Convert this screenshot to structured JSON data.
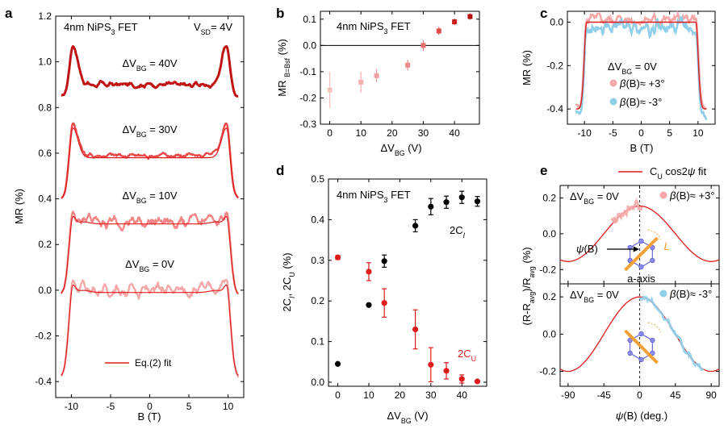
{
  "panels": {
    "a": {
      "letter": "a",
      "title": "4nm NiPS₃ FET",
      "vsd": "Vₛₙ = 4V"
    },
    "b": {
      "letter": "b"
    },
    "c": {
      "letter": "c"
    },
    "d": {
      "letter": "d"
    },
    "e": {
      "letter": "e"
    }
  },
  "chart_data": [
    {
      "panel": "a",
      "type": "line",
      "title": "4nm NiPS3 FET",
      "annotation": "VSD = 4V",
      "xlabel": "B (T)",
      "ylabel": "MR (%)",
      "xlim": [
        -12,
        12
      ],
      "ylim": [
        -0.47,
        1.2
      ],
      "xticks": [
        -10,
        -5,
        0,
        5,
        10
      ],
      "yticks": [
        -0.4,
        -0.2,
        0.0,
        0.2,
        0.4,
        0.6,
        0.8,
        1.0,
        1.2
      ],
      "legend": "Eq.(2) fit",
      "series": [
        {
          "name": "ΔVBG = 40V",
          "color": "#c01515",
          "baseline": 0.9,
          "peak": 1.07,
          "edge": 0.85
        },
        {
          "name": "ΔVBG = 30V",
          "color": "#ea4a4a",
          "baseline": 0.59,
          "peak": 0.73,
          "edge": 0.4
        },
        {
          "name": "ΔVBG = 10V",
          "color": "#f28686",
          "baseline": 0.3,
          "peak": 0.34,
          "edge": -0.02
        },
        {
          "name": "ΔVBG = 0V",
          "color": "#f5a8a8",
          "baseline": 0.0,
          "peak": 0.04,
          "edge": -0.38
        }
      ]
    },
    {
      "panel": "b",
      "type": "scatter",
      "title": "4nm NiPS3 FET",
      "xlabel": "ΔVBG (V)",
      "ylabel": "MR B=Bsf (%)",
      "xlim": [
        -3,
        48
      ],
      "ylim": [
        -0.3,
        0.13
      ],
      "xticks": [
        0,
        10,
        20,
        30,
        40
      ],
      "yticks": [
        -0.3,
        -0.2,
        -0.1,
        0.0,
        0.1
      ],
      "x": [
        0,
        10,
        15,
        25,
        30,
        35,
        40,
        45
      ],
      "y": [
        -0.17,
        -0.14,
        -0.115,
        -0.075,
        0.0,
        0.055,
        0.09,
        0.11
      ],
      "err": [
        0.07,
        0.04,
        0.025,
        0.02,
        0.02,
        0.015,
        0.012,
        0.012
      ],
      "colors": [
        "#f6c0c0",
        "#f4b0b0",
        "#f0a0a0",
        "#ec8a8a",
        "#e87070",
        "#e24a4a",
        "#cc2020",
        "#b51010"
      ]
    },
    {
      "panel": "c",
      "type": "line",
      "xlabel": "B (T)",
      "ylabel": "MR (%)",
      "xlim": [
        -13,
        13
      ],
      "ylim": [
        -0.47,
        0.05
      ],
      "xticks": [
        -10,
        -5,
        0,
        5,
        10
      ],
      "yticks": [
        -0.4,
        -0.2,
        0.0
      ],
      "annotation": "ΔVBG = 0V",
      "series": [
        {
          "name": "β(B)≈ +3°",
          "color": "#f4a8a8"
        },
        {
          "name": "β(B)≈ -3°",
          "color": "#90cfea"
        },
        {
          "name": "fit",
          "color": "#dd1c1c"
        }
      ]
    },
    {
      "panel": "d",
      "type": "scatter",
      "title": "4nm NiPS3 FET",
      "xlabel": "ΔVBG (V)",
      "ylabel": "2CI, 2CU (%)",
      "xlim": [
        -3,
        48
      ],
      "ylim": [
        -0.01,
        0.5
      ],
      "xticks": [
        0,
        10,
        20,
        30,
        40
      ],
      "yticks": [
        0.0,
        0.1,
        0.2,
        0.3,
        0.4,
        0.5
      ],
      "x": [
        0,
        10,
        15,
        25,
        30,
        35,
        40,
        45
      ],
      "series": [
        {
          "name": "2CI",
          "color": "#000000",
          "values": [
            0.045,
            0.19,
            0.298,
            0.385,
            0.432,
            0.443,
            0.455,
            0.445
          ],
          "err": [
            0.0,
            0.0,
            0.015,
            0.015,
            0.02,
            0.015,
            0.015,
            0.012
          ]
        },
        {
          "name": "2CU",
          "color": "#dd1c1c",
          "values": [
            0.307,
            0.272,
            0.195,
            0.13,
            0.043,
            0.028,
            0.008,
            0.002
          ],
          "err": [
            0.005,
            0.022,
            0.035,
            0.048,
            0.042,
            0.02,
            0.01,
            0.0
          ]
        }
      ]
    },
    {
      "panel": "e",
      "type": "line",
      "legend": "CU cos2ψ fit",
      "xlabel": "ψ(B) (deg.)",
      "ylabel": "(R-Ravg)/Ravg (%)",
      "xlim": [
        -100,
        100
      ],
      "xticks": [
        -90,
        -45,
        0,
        45,
        90
      ],
      "subplots": [
        {
          "annotation": "ΔVBG = 0V",
          "series_name": "β(B)≈ +3°",
          "color": "#f4a8a8",
          "ylim": [
            -0.28,
            0.27
          ],
          "yticks": [
            -0.2,
            0.0,
            0.2
          ],
          "amplitude": 0.155,
          "labels": [
            "ψ(B)",
            "L",
            "a-axis"
          ]
        },
        {
          "annotation": "ΔVBG = 0V",
          "series_name": "β(B)≈ -3°",
          "color": "#90cfea",
          "ylim": [
            -0.28,
            0.27
          ],
          "yticks": [
            -0.2,
            0.0,
            0.2
          ],
          "amplitude": 0.2
        }
      ]
    }
  ]
}
